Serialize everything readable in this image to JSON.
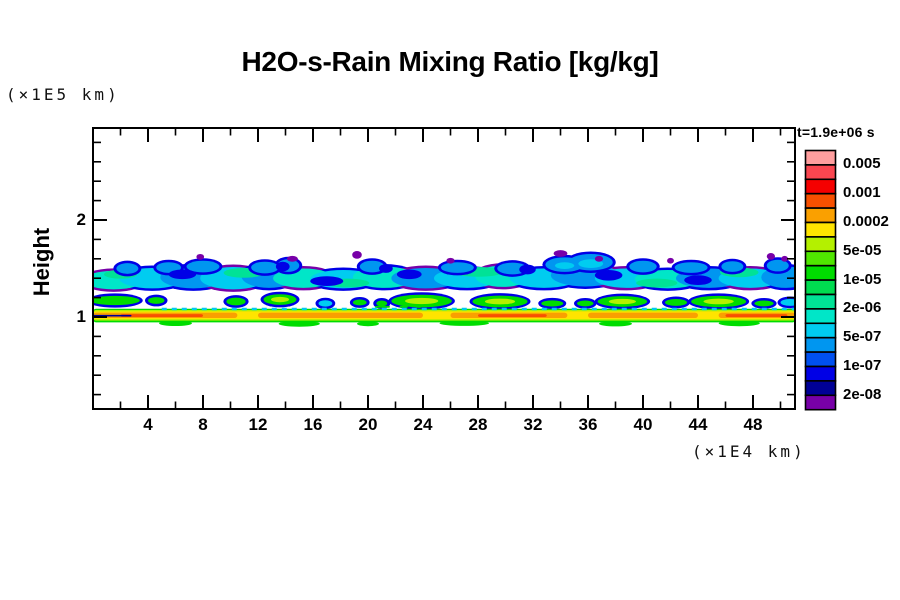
{
  "title": "H2O-s-Rain Mixing Ratio [kg/kg]",
  "axes": {
    "y_unit": "(×1E5 km)",
    "y_label": "Height",
    "x_unit": "(×1E4 km)",
    "y_major_ticks": [
      "1",
      "2"
    ],
    "x_major_ticks": [
      "4",
      "8",
      "12",
      "16",
      "20",
      "24",
      "28",
      "32",
      "36",
      "40",
      "44",
      "48"
    ]
  },
  "legend": {
    "time_label": "t=1.9e+06 s",
    "labels": [
      "0.005",
      "0.001",
      "0.0002",
      "5e-05",
      "1e-05",
      "2e-06",
      "5e-07",
      "1e-07",
      "2e-08"
    ],
    "cell_colors": [
      "#FF9E9E",
      "#FA4650",
      "#F50000",
      "#F85000",
      "#FAA000",
      "#FFE400",
      "#B4F000",
      "#50E600",
      "#00DC00",
      "#00DC50",
      "#00E296",
      "#00E6C8",
      "#00CCF0",
      "#0096F0",
      "#0050F0",
      "#0000E6",
      "#000096",
      "#7800A8"
    ]
  },
  "chart_data": {
    "type": "heatmap",
    "title": "H2O-s-Rain Mixing Ratio [kg/kg]",
    "xlabel": "(×1E4 km)",
    "ylabel": "Height (×1E5 km)",
    "time_label": "t=1.9e+06 s",
    "x_axis": {
      "range": [
        0,
        51.1
      ],
      "major_ticks": [
        4,
        8,
        12,
        16,
        20,
        24,
        28,
        32,
        36,
        40,
        44,
        48
      ],
      "minor_tick_step": 2
    },
    "y_axis": {
      "range": [
        0.05,
        2.95
      ],
      "major_ticks": [
        1,
        2
      ],
      "minor_tick_step": 0.2
    },
    "contour_levels_desc": [
      0.005,
      0.002,
      0.001,
      0.0005,
      0.0002,
      0.0001,
      5e-05,
      2e-05,
      1e-05,
      5e-06,
      2e-06,
      1e-06,
      5e-07,
      2e-07,
      1e-07,
      5e-08,
      2e-08
    ],
    "labeled_levels": [
      0.005,
      0.001,
      0.0002,
      5e-05,
      1e-05,
      2e-06,
      5e-07,
      1e-07,
      2e-08
    ],
    "palette": {
      "pink": "#FF9E9E",
      "salmon": "#FA4650",
      "red": "#F50000",
      "orangered": "#F85000",
      "orange": "#FAA000",
      "yellow": "#FFE400",
      "chart": "#B4F000",
      "green1": "#50E600",
      "green": "#00DC00",
      "green2": "#00DC50",
      "spring": "#00E296",
      "turq": "#00E6C8",
      "cyan": "#00CCF0",
      "sky": "#0096F0",
      "blue": "#0050F0",
      "navy": "#0000E6",
      "darknavy": "#000096",
      "purple": "#7800A8"
    },
    "features": {
      "summary": "Three horizontal layers: main rain band of cyan/blue at height ~1.26-1.56 spanning all x with dark-blue bumps and purple specks above; a broken row of green blobs with chartreuse cores at height ~1.07-1.23; a continuous thin yellow/orange surface stripe at height ~0.94-1.09 with a dotted cyan line just above it.",
      "main_band_height": [
        1.26,
        1.56
      ],
      "blob_row_height": [
        1.07,
        1.23
      ],
      "surface_stripe_height": [
        0.94,
        1.09
      ]
    },
    "field": {
      "bandA_base": [
        [
          1.5,
          1.38,
          2.2,
          0.095,
          "turq",
          "purple"
        ],
        [
          4.3,
          1.4,
          2.4,
          0.105,
          "cyan",
          "navy"
        ],
        [
          7.3,
          1.41,
          2.4,
          0.115,
          "sky",
          "navy"
        ],
        [
          10.2,
          1.4,
          2.4,
          0.115,
          "cyan",
          "purple"
        ],
        [
          12.8,
          1.42,
          2.0,
          0.12,
          "sky",
          "navy"
        ],
        [
          15.3,
          1.4,
          2.2,
          0.1,
          "turq",
          "purple"
        ],
        [
          18.2,
          1.39,
          2.4,
          0.095,
          "cyan",
          "navy"
        ],
        [
          21.2,
          1.41,
          2.3,
          0.11,
          "turq",
          "navy"
        ],
        [
          24.2,
          1.4,
          2.5,
          0.105,
          "sky",
          "purple"
        ],
        [
          27.2,
          1.4,
          2.4,
          0.1,
          "cyan",
          "navy"
        ],
        [
          29.8,
          1.42,
          2.0,
          0.11,
          "turq",
          "purple"
        ],
        [
          32.8,
          1.4,
          2.5,
          0.1,
          "cyan",
          "navy"
        ],
        [
          35.8,
          1.43,
          2.5,
          0.115,
          "sky",
          "navy"
        ],
        [
          38.8,
          1.4,
          2.3,
          0.1,
          "cyan",
          "purple"
        ],
        [
          41.8,
          1.39,
          2.4,
          0.095,
          "turq",
          "navy"
        ],
        [
          44.8,
          1.4,
          2.4,
          0.1,
          "sky",
          "navy"
        ],
        [
          47.8,
          1.4,
          2.3,
          0.1,
          "cyan",
          "purple"
        ],
        [
          50.4,
          1.41,
          1.8,
          0.11,
          "sky",
          "navy"
        ]
      ],
      "bandA_green_accents": [
        [
          2.0,
          1.44,
          1.2,
          0.045
        ],
        [
          11.0,
          1.455,
          1.5,
          0.05
        ],
        [
          18.5,
          1.35,
          1.6,
          0.045
        ],
        [
          28.0,
          1.465,
          1.8,
          0.05
        ],
        [
          35.8,
          1.52,
          1.2,
          0.05
        ],
        [
          41.0,
          1.35,
          1.5,
          0.045
        ],
        [
          47.0,
          1.46,
          1.4,
          0.05
        ]
      ],
      "bandA_blue_bumps": [
        [
          2.5,
          1.5,
          0.8,
          0.055
        ],
        [
          5.5,
          1.51,
          0.9,
          0.055
        ],
        [
          8.0,
          1.52,
          1.2,
          0.06
        ],
        [
          12.5,
          1.51,
          1.0,
          0.06
        ],
        [
          14.2,
          1.53,
          0.8,
          0.065
        ],
        [
          20.3,
          1.52,
          0.9,
          0.06
        ],
        [
          26.5,
          1.51,
          1.2,
          0.055
        ],
        [
          30.5,
          1.5,
          1.1,
          0.06
        ],
        [
          34.3,
          1.54,
          1.4,
          0.075
        ],
        [
          36.2,
          1.565,
          1.6,
          0.085
        ],
        [
          40.0,
          1.52,
          1.0,
          0.06
        ],
        [
          43.5,
          1.51,
          1.2,
          0.055
        ],
        [
          46.5,
          1.52,
          0.8,
          0.055
        ],
        [
          49.8,
          1.53,
          0.8,
          0.06
        ]
      ],
      "bandA_bump_cores": [
        [
          36.2,
          1.55,
          0.9,
          0.045,
          "cyan"
        ],
        [
          34.3,
          1.53,
          0.7,
          0.035,
          "cyan"
        ]
      ],
      "bandA_navy_patches": [
        [
          6.5,
          1.44,
          1.0,
          0.05
        ],
        [
          13.8,
          1.52,
          0.5,
          0.05
        ],
        [
          17.0,
          1.37,
          1.2,
          0.05
        ],
        [
          21.3,
          1.5,
          0.5,
          0.045
        ],
        [
          23.0,
          1.44,
          0.9,
          0.05
        ],
        [
          31.6,
          1.49,
          0.6,
          0.05
        ],
        [
          37.5,
          1.43,
          1.0,
          0.055
        ],
        [
          44.0,
          1.38,
          1.0,
          0.05
        ]
      ],
      "purple_specks": [
        [
          7.8,
          1.62,
          0.28,
          0.03
        ],
        [
          14.5,
          1.6,
          0.4,
          0.03
        ],
        [
          19.2,
          1.64,
          0.35,
          0.04
        ],
        [
          26.0,
          1.58,
          0.3,
          0.03
        ],
        [
          34.0,
          1.655,
          0.5,
          0.035
        ],
        [
          36.8,
          1.6,
          0.3,
          0.03
        ],
        [
          42.0,
          1.58,
          0.25,
          0.03
        ],
        [
          49.3,
          1.625,
          0.3,
          0.035
        ],
        [
          50.3,
          1.6,
          0.25,
          0.03
        ]
      ],
      "bandB_blobs": [
        [
          1.6,
          1.17,
          1.8,
          0.048,
          "green",
          null
        ],
        [
          4.6,
          1.17,
          0.6,
          0.035,
          "green",
          null
        ],
        [
          10.4,
          1.16,
          0.7,
          0.04,
          "green",
          null
        ],
        [
          13.6,
          1.18,
          1.2,
          0.055,
          "green",
          "chart"
        ],
        [
          16.9,
          1.14,
          0.5,
          0.033,
          "cyan",
          null
        ],
        [
          19.4,
          1.15,
          0.5,
          0.03,
          "green",
          null
        ],
        [
          21.0,
          1.14,
          0.4,
          0.03,
          "green",
          null
        ],
        [
          23.9,
          1.165,
          2.2,
          0.065,
          "green",
          "chart"
        ],
        [
          29.6,
          1.16,
          2.0,
          0.06,
          "green",
          "chart"
        ],
        [
          33.4,
          1.14,
          0.8,
          0.032,
          "green",
          null
        ],
        [
          35.8,
          1.14,
          0.6,
          0.03,
          "green",
          null
        ],
        [
          38.5,
          1.16,
          1.8,
          0.055,
          "green",
          "chart"
        ],
        [
          42.4,
          1.15,
          0.8,
          0.035,
          "green",
          null
        ],
        [
          45.5,
          1.16,
          2.0,
          0.058,
          "green",
          "chart"
        ],
        [
          48.8,
          1.14,
          0.7,
          0.03,
          "green",
          null
        ],
        [
          50.7,
          1.15,
          0.7,
          0.035,
          "cyan",
          null
        ]
      ],
      "bandC_under_blobs": [
        [
          6,
          0.935,
          1.2,
          0.028
        ],
        [
          15,
          0.93,
          1.5,
          0.03
        ],
        [
          20,
          0.93,
          0.8,
          0.025
        ],
        [
          27,
          0.935,
          1.8,
          0.027
        ],
        [
          38,
          0.93,
          1.2,
          0.027
        ],
        [
          47,
          0.935,
          1.5,
          0.03
        ]
      ],
      "bandC_layers": [
        [
          0,
          51.1,
          0.945,
          1.085,
          "green"
        ],
        [
          0,
          51.1,
          0.962,
          1.072,
          "chart"
        ],
        [
          0,
          51.1,
          0.978,
          1.058,
          "yellow"
        ]
      ],
      "bandC_orange_segments": [
        [
          0,
          10.5
        ],
        [
          12,
          24
        ],
        [
          26,
          34.5
        ],
        [
          36,
          44
        ],
        [
          45.5,
          51.1
        ]
      ],
      "bandC_orange_band_h": [
        0.99,
        1.045
      ],
      "bandC_deep_orange_segments": [
        [
          2,
          8
        ],
        [
          28,
          33
        ],
        [
          46,
          50.5
        ]
      ],
      "bandC_deep_orange_band_h": [
        1.0,
        1.03
      ],
      "bandC_navy_segment": [
        0,
        2.8,
        1.005,
        1.022
      ],
      "bandC_green_dashes_above": [
        [
          20.5,
          21.6
        ],
        [
          22.3,
          22.9
        ],
        [
          23.5,
          23.9
        ]
      ],
      "bandC_green_dashes_h": [
        1.095,
        1.115
      ],
      "dotted_cyan_line": {
        "h": 1.082,
        "v0": 5,
        "v1": 51,
        "dash": "5 5"
      }
    }
  }
}
